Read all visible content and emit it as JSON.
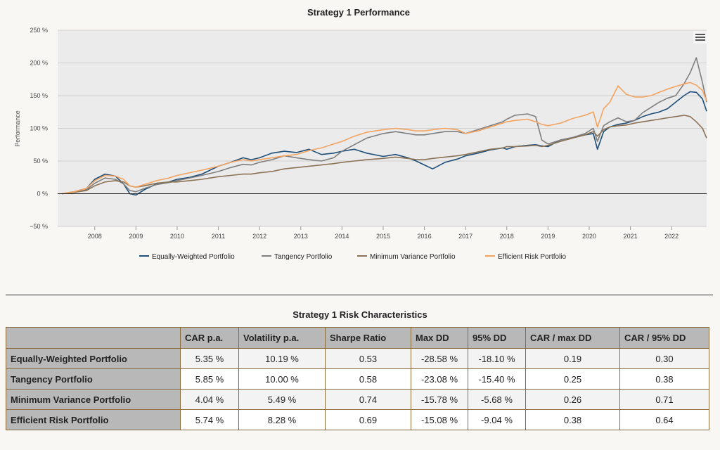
{
  "chart": {
    "title": "Strategy 1 Performance",
    "ylabel": "Performance",
    "menu_icon": "hamburger-menu-icon"
  },
  "chart_data": {
    "type": "line",
    "title": "Strategy 1 Performance",
    "xlabel": "",
    "ylabel": "Performance",
    "x_range": [
      2007.1,
      2022.85
    ],
    "ylim": [
      -50,
      250
    ],
    "y_ticks": [
      -50,
      0,
      50,
      100,
      150,
      200,
      250
    ],
    "y_tick_labels": [
      "−50 %",
      "0 %",
      "50 %",
      "100 %",
      "150 %",
      "200 %",
      "250 %"
    ],
    "x_ticks": [
      2008,
      2009,
      2010,
      2011,
      2012,
      2013,
      2014,
      2015,
      2016,
      2017,
      2018,
      2019,
      2020,
      2021,
      2022
    ],
    "x_tick_labels": [
      "2008",
      "2009",
      "2010",
      "2011",
      "2012",
      "2013",
      "2014",
      "2015",
      "2016",
      "2017",
      "2018",
      "2019",
      "2020",
      "2021",
      "2022"
    ],
    "grid": true,
    "legend_position": "bottom-center",
    "x": [
      2007.2,
      2007.5,
      2007.8,
      2008.0,
      2008.25,
      2008.5,
      2008.7,
      2008.85,
      2009.0,
      2009.2,
      2009.5,
      2009.8,
      2010.0,
      2010.3,
      2010.6,
      2011.0,
      2011.3,
      2011.6,
      2011.8,
      2012.0,
      2012.3,
      2012.6,
      2012.9,
      2013.2,
      2013.5,
      2013.8,
      2014.0,
      2014.3,
      2014.6,
      2015.0,
      2015.3,
      2015.6,
      2015.8,
      2016.0,
      2016.2,
      2016.5,
      2016.8,
      2017.0,
      2017.3,
      2017.6,
      2017.9,
      2018.0,
      2018.2,
      2018.5,
      2018.7,
      2018.85,
      2019.0,
      2019.3,
      2019.6,
      2019.9,
      2020.1,
      2020.2,
      2020.35,
      2020.5,
      2020.7,
      2020.9,
      2021.1,
      2021.3,
      2021.5,
      2021.7,
      2021.9,
      2022.1,
      2022.3,
      2022.45,
      2022.6,
      2022.75,
      2022.85
    ],
    "series": [
      {
        "name": "Equally-Weighted Portfolio",
        "color": "#1f4e79",
        "values": [
          0,
          3,
          8,
          22,
          30,
          27,
          15,
          0,
          -2,
          6,
          15,
          18,
          22,
          25,
          30,
          42,
          48,
          55,
          52,
          55,
          62,
          65,
          63,
          68,
          60,
          62,
          65,
          68,
          62,
          57,
          60,
          55,
          50,
          44,
          38,
          48,
          53,
          58,
          62,
          67,
          70,
          68,
          72,
          74,
          75,
          73,
          72,
          82,
          86,
          90,
          92,
          68,
          95,
          102,
          106,
          108,
          112,
          118,
          122,
          125,
          130,
          140,
          150,
          156,
          155,
          145,
          126
        ]
      },
      {
        "name": "Tangency Portfolio",
        "color": "#7f7f7f",
        "values": [
          0,
          2,
          6,
          16,
          24,
          22,
          15,
          5,
          3,
          8,
          14,
          17,
          20,
          24,
          28,
          34,
          40,
          45,
          44,
          48,
          52,
          58,
          55,
          52,
          50,
          55,
          65,
          75,
          85,
          92,
          95,
          92,
          90,
          90,
          92,
          95,
          95,
          92,
          98,
          104,
          110,
          114,
          120,
          122,
          118,
          82,
          76,
          82,
          86,
          92,
          100,
          80,
          104,
          110,
          116,
          110,
          112,
          124,
          132,
          140,
          146,
          150,
          168,
          185,
          208,
          170,
          140
        ]
      },
      {
        "name": "Minimum Variance Portfolio",
        "color": "#8c7355",
        "values": [
          0,
          2,
          5,
          12,
          18,
          20,
          18,
          12,
          10,
          12,
          16,
          18,
          18,
          20,
          22,
          26,
          28,
          30,
          30,
          32,
          34,
          38,
          40,
          42,
          44,
          46,
          48,
          50,
          52,
          54,
          56,
          54,
          52,
          52,
          54,
          56,
          58,
          60,
          64,
          68,
          70,
          72,
          72,
          73,
          74,
          72,
          74,
          80,
          85,
          90,
          95,
          88,
          98,
          102,
          104,
          105,
          108,
          110,
          112,
          114,
          116,
          118,
          120,
          118,
          110,
          100,
          85
        ]
      },
      {
        "name": "Efficient Risk Portfolio",
        "color": "#f4a460",
        "values": [
          0,
          3,
          8,
          20,
          28,
          27,
          22,
          12,
          10,
          14,
          20,
          24,
          28,
          32,
          36,
          42,
          48,
          52,
          50,
          52,
          55,
          58,
          60,
          66,
          70,
          76,
          80,
          88,
          94,
          98,
          100,
          98,
          96,
          96,
          98,
          100,
          98,
          92,
          96,
          102,
          108,
          110,
          112,
          114,
          110,
          106,
          104,
          108,
          115,
          120,
          125,
          102,
          130,
          140,
          165,
          152,
          148,
          148,
          150,
          155,
          160,
          164,
          168,
          170,
          166,
          158,
          142
        ]
      }
    ]
  },
  "table": {
    "title": "Strategy 1 Risk Characteristics",
    "headers": [
      "",
      "CAR p.a.",
      "Volatility p.a.",
      "Sharpe Ratio",
      "Max DD",
      "95% DD",
      "CAR / max DD",
      "CAR / 95% DD"
    ],
    "rows": [
      {
        "name": "Equally-Weighted Portfolio",
        "cells": [
          "5.35 %",
          "10.19 %",
          "0.53",
          "-28.58 %",
          "-18.10 %",
          "0.19",
          "0.30"
        ]
      },
      {
        "name": "Tangency Portfolio",
        "cells": [
          "5.85 %",
          "10.00 %",
          "0.58",
          "-23.08 %",
          "-15.40 %",
          "0.25",
          "0.38"
        ]
      },
      {
        "name": "Minimum Variance Portfolio",
        "cells": [
          "4.04 %",
          "5.49 %",
          "0.74",
          "-15.78 %",
          "-5.68 %",
          "0.26",
          "0.71"
        ]
      },
      {
        "name": "Efficient Risk Portfolio",
        "cells": [
          "5.74 %",
          "8.28 %",
          "0.69",
          "-15.08 %",
          "-9.04 %",
          "0.38",
          "0.64"
        ]
      }
    ]
  }
}
